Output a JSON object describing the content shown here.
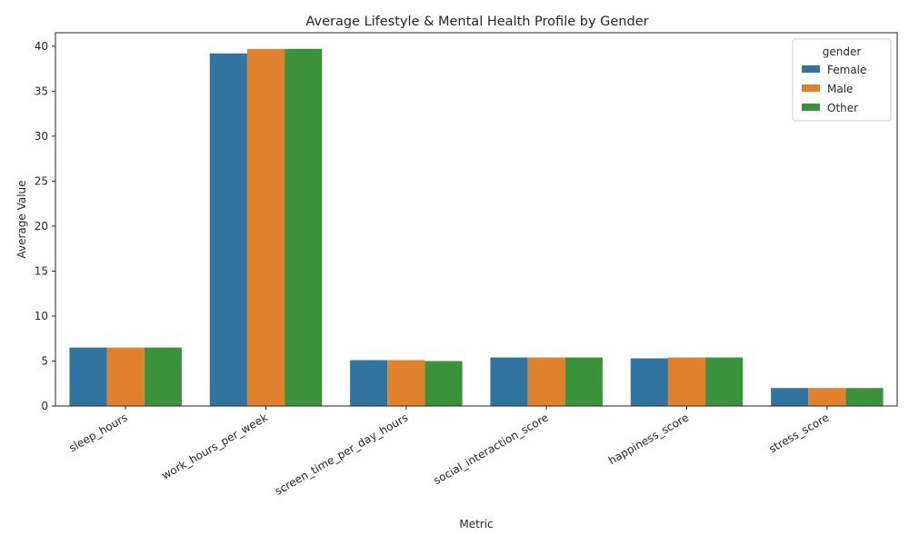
{
  "chart_data": {
    "type": "bar",
    "title": "Average Lifestyle & Mental Health Profile by Gender",
    "xlabel": "Metric",
    "ylabel": "Average Value",
    "ylim": [
      0,
      41.5
    ],
    "yticks": [
      0,
      5,
      10,
      15,
      20,
      25,
      30,
      35,
      40
    ],
    "categories": [
      "sleep_hours",
      "work_hours_per_week",
      "screen_time_per_day_hours",
      "social_interaction_score",
      "happiness_score",
      "stress_score"
    ],
    "legend": {
      "title": "gender",
      "placement": "top-right"
    },
    "grid": false,
    "series": [
      {
        "name": "Female",
        "color": "#3274a1",
        "values": [
          6.5,
          39.2,
          5.1,
          5.4,
          5.3,
          2.0
        ]
      },
      {
        "name": "Male",
        "color": "#e1812c",
        "values": [
          6.5,
          39.7,
          5.1,
          5.4,
          5.4,
          2.0
        ]
      },
      {
        "name": "Other",
        "color": "#3a923a",
        "values": [
          6.5,
          39.7,
          5.0,
          5.4,
          5.4,
          2.0
        ]
      }
    ]
  }
}
